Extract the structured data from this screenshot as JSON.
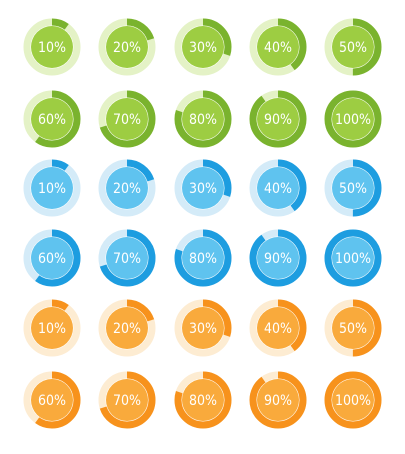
{
  "groups": [
    {
      "arc": "#7ab32e",
      "track": "#e4f2c6",
      "fill": "#9dcd42",
      "values": [
        10,
        20,
        30,
        40,
        50,
        60,
        70,
        80,
        90,
        100
      ],
      "value_labels": [
        "10%",
        "20%",
        "30%",
        "40%",
        "50%",
        "60%",
        "70%",
        "80%",
        "90%",
        "100%"
      ]
    },
    {
      "arc": "#1d9de0",
      "track": "#d4ebf8",
      "fill": "#5fc3ef",
      "values": [
        10,
        20,
        30,
        40,
        50,
        60,
        70,
        80,
        90,
        100
      ],
      "value_labels": [
        "10%",
        "20%",
        "30%",
        "40%",
        "50%",
        "60%",
        "70%",
        "80%",
        "90%",
        "100%"
      ]
    },
    {
      "arc": "#f7921c",
      "track": "#fdecd2",
      "fill": "#f9aa3c",
      "values": [
        10,
        20,
        30,
        40,
        50,
        60,
        70,
        80,
        90,
        100
      ],
      "value_labels": [
        "10%",
        "20%",
        "30%",
        "40%",
        "50%",
        "60%",
        "70%",
        "80%",
        "90%",
        "100%"
      ]
    }
  ]
}
